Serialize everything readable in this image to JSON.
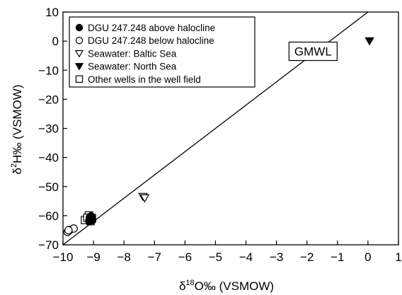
{
  "chart_data": {
    "type": "scatter",
    "xlabel": "δ18O‰ (VSMOW)",
    "ylabel": "δ2H‰ (VSMOW)",
    "xlim": [
      -10,
      1
    ],
    "ylim": [
      -70,
      10
    ],
    "x_ticks": [
      -10,
      -9,
      -8,
      -7,
      -6,
      -5,
      -4,
      -3,
      -2,
      -1,
      0,
      1
    ],
    "y_ticks": [
      10,
      0,
      -10,
      -20,
      -30,
      -40,
      -50,
      -60,
      -70
    ],
    "x_tick_labels": [
      "−10",
      "−9",
      "−8",
      "−7",
      "−6",
      "−5",
      "−4",
      "−3",
      "−2",
      "−1",
      "0",
      "1"
    ],
    "y_tick_labels": [
      "10",
      "0",
      "−10",
      "−20",
      "−30",
      "−40",
      "−50",
      "−60",
      "−70"
    ],
    "grid": false,
    "legend_position": "top-left",
    "series": [
      {
        "name": "DGU 247.248 above halocline",
        "marker": "filled-circle",
        "points": [
          [
            -9.12,
            -60.6
          ],
          [
            -9.1,
            -61.4
          ],
          [
            -9.06,
            -61.0
          ],
          [
            -9.14,
            -61.8
          ],
          [
            -9.08,
            -60.2
          ],
          [
            -9.04,
            -61.6
          ]
        ]
      },
      {
        "name": "DGU 247.248 below halocline",
        "marker": "open-circle",
        "points": [
          [
            -9.85,
            -65.6
          ],
          [
            -9.78,
            -64.9
          ],
          [
            -9.65,
            -64.4
          ],
          [
            -9.82,
            -65.0
          ]
        ]
      },
      {
        "name": "Seawater: Baltic Sea",
        "marker": "open-triangle-down",
        "points": [
          [
            -7.38,
            -53.4
          ],
          [
            -7.32,
            -53.9
          ]
        ]
      },
      {
        "name": "Seawater: North Sea",
        "marker": "filled-triangle-down",
        "points": [
          [
            0.05,
            0.1
          ]
        ]
      },
      {
        "name": "Other wells in the well field",
        "marker": "open-square",
        "points": [
          [
            -9.28,
            -61.5
          ],
          [
            -9.15,
            -59.9
          ],
          [
            -9.05,
            -60.8
          ],
          [
            -9.2,
            -60.7
          ],
          [
            -9.1,
            -61.9
          ]
        ]
      }
    ],
    "lines": [
      {
        "name": "GMWL",
        "slope": 8,
        "intercept": 10
      }
    ],
    "annotations": [
      {
        "text": "GMWL",
        "x": -1.8,
        "y": -3.5,
        "boxed": true
      }
    ]
  },
  "colors": {
    "ink": "#000000",
    "background": "#ffffff"
  }
}
